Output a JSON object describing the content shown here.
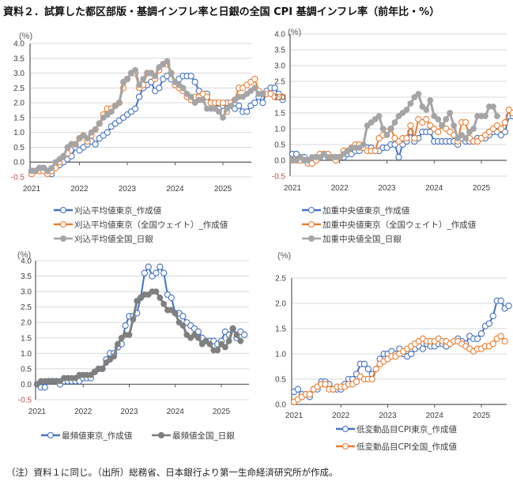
{
  "title": "資料２．試算した都区部版・基調インフレ率と日銀の全国 CPI 基調インフレ率（前年比・%）",
  "note": "（注）資料１に同じ。（出所）総務省、日本銀行より第一生命経済研究所が作成。",
  "colors": {
    "blue": "#4472c4",
    "orange": "#ed7d31",
    "gray": "#a5a5a5",
    "darkgray": "#7f7f7f",
    "grid": "#d9d9d9",
    "axis": "#595959",
    "negative_tick": "#c0504d"
  },
  "chart_data": [
    {
      "id": "trimmed-mean",
      "type": "line",
      "title": "",
      "unit_label": "(%)",
      "xlabel": "",
      "ylabel": "%",
      "ylim": [
        -0.5,
        4.0
      ],
      "yticks": [
        "4.0",
        "3.5",
        "3.0",
        "2.5",
        "2.0",
        "1.5",
        "1.0",
        "0.5",
        "0.0",
        "-0.5"
      ],
      "xticks": [
        "2021",
        "2022",
        "2023",
        "2024",
        "2025"
      ],
      "x_start": "2021-01",
      "x_end": "2025-07",
      "grid": true,
      "legend_position": "bottom",
      "series": [
        {
          "name": "刈込平均値東京_作成値",
          "color": "blue",
          "marker": "open-circle",
          "values": [
            -0.3,
            -0.3,
            -0.2,
            -0.2,
            -0.3,
            -0.4,
            -0.2,
            -0.1,
            0.0,
            0.1,
            0.2,
            0.5,
            0.4,
            0.5,
            0.6,
            0.7,
            0.6,
            0.8,
            0.9,
            1.0,
            1.2,
            1.3,
            1.4,
            1.5,
            1.6,
            1.7,
            1.8,
            2.2,
            2.5,
            2.6,
            2.7,
            2.4,
            2.5,
            2.8,
            2.9,
            2.8,
            2.6,
            2.8,
            2.9,
            2.9,
            2.9,
            2.7,
            2.4,
            2.3,
            2.3,
            2.0,
            2.0,
            1.8,
            1.9,
            2.0,
            1.9,
            1.8,
            1.9,
            1.7,
            1.7,
            1.9,
            2.0,
            2.2,
            2.0,
            2.4,
            2.5,
            2.5,
            2.3,
            2.1
          ]
        },
        {
          "name": "刈込平均値東京（全国ウェイト）_作成値",
          "color": "orange",
          "marker": "open-circle",
          "values": [
            -0.4,
            -0.3,
            -0.3,
            -0.3,
            -0.4,
            -0.3,
            -0.2,
            0.0,
            0.2,
            0.3,
            0.6,
            0.6,
            0.8,
            0.9,
            0.7,
            0.9,
            1.1,
            1.3,
            1.6,
            1.8,
            1.8,
            1.9,
            2.0,
            2.5,
            2.8,
            3.0,
            3.0,
            2.5,
            2.6,
            3.0,
            3.0,
            2.8,
            3.1,
            3.3,
            3.3,
            3.0,
            2.6,
            2.5,
            2.4,
            2.2,
            2.1,
            2.2,
            2.2,
            2.3,
            2.2,
            2.0,
            2.0,
            2.0,
            2.0,
            1.7,
            2.0,
            2.1,
            2.5,
            2.5,
            2.6,
            2.7,
            2.8,
            2.4,
            2.3,
            2.3,
            2.3,
            2.2,
            2.2,
            2.2
          ]
        },
        {
          "name": "刈込平均値全国_日銀",
          "color": "gray",
          "marker": "filled-circle",
          "values": [
            -0.3,
            -0.3,
            -0.2,
            -0.2,
            -0.3,
            -0.2,
            0.0,
            0.1,
            0.2,
            0.5,
            0.6,
            0.6,
            0.8,
            0.9,
            0.8,
            1.0,
            1.1,
            1.3,
            1.5,
            1.6,
            1.7,
            1.9,
            2.0,
            2.7,
            2.8,
            3.0,
            3.1,
            2.6,
            2.8,
            3.0,
            3.0,
            2.9,
            3.2,
            3.3,
            3.4,
            3.0,
            2.7,
            2.6,
            2.5,
            2.3,
            2.2,
            2.0,
            2.1,
            2.1,
            1.8,
            1.8,
            1.8,
            1.7,
            1.5,
            1.8,
            1.9,
            2.1,
            2.2,
            2.2,
            2.3,
            2.4,
            2.5,
            2.3,
            2.3
          ]
        }
      ]
    },
    {
      "id": "weighted-median",
      "type": "line",
      "title": "",
      "unit_label": "(%)",
      "xlabel": "",
      "ylabel": "%",
      "ylim": [
        -0.5,
        4.0
      ],
      "yticks": [
        "4.0",
        "3.5",
        "3.0",
        "2.5",
        "2.0",
        "1.5",
        "1.0",
        "0.5",
        "0.0",
        "-0.5"
      ],
      "xticks": [
        "2021",
        "2022",
        "2023",
        "2024",
        "2025"
      ],
      "x_start": "2021-01",
      "x_end": "2025-07",
      "grid": true,
      "legend_position": "bottom",
      "series": [
        {
          "name": "加重中央値東京_作成値",
          "color": "blue",
          "marker": "open-circle",
          "values": [
            0.2,
            0.2,
            0.1,
            0.1,
            0.0,
            0.0,
            0.1,
            0.1,
            0.2,
            0.2,
            0.1,
            0.1,
            0.1,
            0.1,
            0.2,
            0.2,
            0.3,
            0.3,
            0.4,
            0.4,
            0.4,
            0.3,
            0.3,
            0.4,
            0.4,
            0.5,
            0.5,
            0.1,
            0.5,
            0.6,
            0.9,
            0.6,
            0.7,
            0.9,
            0.9,
            0.9,
            0.6,
            0.6,
            0.6,
            0.6,
            0.6,
            0.6,
            0.5,
            0.7,
            0.6,
            0.6,
            0.6,
            0.7,
            0.7,
            0.7,
            0.8,
            0.9,
            0.9,
            0.8,
            0.9,
            1.4,
            1.4,
            1.3
          ]
        },
        {
          "name": "加重中央値東京（全国ウェイト）_作成値",
          "color": "orange",
          "marker": "open-circle",
          "values": [
            0.0,
            0.0,
            0.0,
            0.0,
            -0.1,
            -0.1,
            0.0,
            0.2,
            0.2,
            0.2,
            0.1,
            0.0,
            0.1,
            0.3,
            0.3,
            0.4,
            0.5,
            0.5,
            0.4,
            0.3,
            0.3,
            0.3,
            0.7,
            0.8,
            0.9,
            1.0,
            0.7,
            0.6,
            0.7,
            0.7,
            1.1,
            0.7,
            1.3,
            1.2,
            1.3,
            1.1,
            1.0,
            0.9,
            1.1,
            1.0,
            0.9,
            0.8,
            0.6,
            1.2,
            1.2,
            0.7,
            0.6,
            0.6,
            0.7,
            0.8,
            0.9,
            1.0,
            1.1,
            1.0,
            1.2,
            1.6,
            1.5,
            1.2,
            1.1
          ]
        },
        {
          "name": "加重中央値全国_日銀",
          "color": "gray",
          "marker": "filled-circle",
          "values": [
            0.0,
            0.0,
            0.1,
            0.0,
            0.0,
            0.1,
            0.1,
            0.1,
            0.2,
            0.1,
            0.1,
            0.1,
            0.1,
            0.2,
            0.3,
            0.4,
            0.4,
            0.4,
            0.5,
            1.1,
            1.2,
            1.3,
            1.4,
            1.0,
            0.8,
            1.0,
            1.2,
            1.4,
            1.5,
            1.6,
            1.8,
            2.0,
            2.1,
            1.7,
            1.6,
            1.9,
            1.4,
            1.3,
            1.1,
            1.3,
            1.5,
            1.1,
            0.7,
            0.8,
            0.7,
            0.9,
            1.0,
            1.4,
            1.4,
            1.4,
            1.7,
            1.7,
            1.4
          ]
        }
      ]
    },
    {
      "id": "mode",
      "type": "line",
      "title": "",
      "unit_label": "(%)",
      "xlabel": "",
      "ylabel": "%",
      "ylim": [
        -0.5,
        4.0
      ],
      "yticks": [
        "4.0",
        "3.5",
        "3.0",
        "2.5",
        "2.0",
        "1.5",
        "1.0",
        "0.5",
        "0.0",
        "-0.5"
      ],
      "xticks": [
        "2021",
        "2022",
        "2023",
        "2024",
        "2025"
      ],
      "x_start": "2021-01",
      "x_end": "2025-07",
      "grid": true,
      "legend_position": "bottom",
      "series": [
        {
          "name": "最頻値東京_作成値",
          "color": "blue",
          "marker": "open-circle",
          "values": [
            0.0,
            -0.1,
            -0.1,
            0.1,
            0.1,
            0.1,
            0.0,
            0.1,
            0.1,
            0.1,
            0.1,
            0.1,
            0.2,
            0.2,
            0.2,
            0.4,
            0.5,
            0.5,
            0.8,
            1.0,
            1.0,
            1.2,
            1.3,
            1.9,
            2.2,
            2.2,
            2.3,
            2.8,
            3.6,
            3.8,
            3.5,
            3.6,
            3.8,
            3.6,
            2.9,
            2.8,
            2.3,
            2.3,
            2.2,
            2.0,
            1.9,
            1.8,
            1.7,
            1.5,
            1.4,
            1.4,
            1.4,
            1.3,
            1.4,
            1.7,
            1.6,
            1.8,
            1.5,
            1.7,
            1.6
          ]
        },
        {
          "name": "最頻値全国_日銀",
          "color": "darkgray",
          "marker": "filled-circle",
          "values": [
            0.0,
            0.1,
            0.1,
            0.1,
            0.1,
            0.1,
            0.1,
            0.2,
            0.2,
            0.2,
            0.2,
            0.3,
            0.3,
            0.3,
            0.3,
            0.4,
            0.5,
            0.5,
            0.7,
            0.8,
            0.9,
            1.3,
            1.5,
            1.6,
            1.6,
            2.1,
            2.7,
            2.8,
            2.9,
            2.9,
            3.0,
            3.0,
            2.8,
            2.6,
            2.4,
            2.4,
            2.3,
            2.0,
            1.9,
            1.6,
            1.5,
            1.6,
            1.5,
            1.3,
            1.4,
            1.3,
            1.1,
            1.1,
            1.3,
            1.2,
            1.4,
            1.8,
            1.6,
            1.4
          ]
        }
      ]
    },
    {
      "id": "low-volatility",
      "type": "line",
      "title": "",
      "unit_label": "(%)",
      "xlabel": "",
      "ylabel": "%",
      "ylim": [
        0.0,
        2.5
      ],
      "yticks": [
        "2.5",
        "2.0",
        "1.5",
        "1.0",
        "0.5",
        "0.0"
      ],
      "xticks": [
        "2021",
        "2022",
        "2023",
        "2024",
        "2025"
      ],
      "x_start": "2021-01",
      "x_end": "2025-07",
      "grid": true,
      "legend_position": "bottom",
      "series": [
        {
          "name": "低変動品目CPI東京_作成値",
          "color": "blue",
          "marker": "open-circle",
          "values": [
            0.25,
            0.3,
            0.2,
            0.2,
            0.15,
            0.3,
            0.3,
            0.45,
            0.45,
            0.4,
            0.3,
            0.3,
            0.3,
            0.4,
            0.5,
            0.5,
            0.6,
            0.8,
            0.8,
            0.7,
            0.6,
            0.7,
            0.9,
            1.0,
            1.0,
            1.05,
            1.0,
            1.1,
            1.0,
            0.95,
            1.0,
            1.1,
            1.15,
            1.1,
            1.2,
            1.15,
            1.15,
            1.2,
            1.2,
            1.15,
            1.2,
            1.25,
            1.3,
            1.25,
            1.2,
            1.35,
            1.3,
            1.3,
            1.4,
            1.55,
            1.6,
            1.75,
            2.05,
            2.05,
            1.9,
            1.95
          ]
        },
        {
          "name": "低変動品目CPI全国_作成値",
          "color": "orange",
          "marker": "open-circle",
          "values": [
            0.05,
            0.1,
            0.15,
            0.2,
            0.2,
            0.3,
            0.35,
            0.4,
            0.4,
            0.3,
            0.3,
            0.35,
            0.35,
            0.35,
            0.4,
            0.4,
            0.45,
            0.55,
            0.5,
            0.5,
            0.5,
            0.7,
            0.8,
            0.85,
            0.9,
            0.95,
            0.95,
            1.0,
            1.05,
            1.1,
            1.15,
            1.2,
            1.25,
            1.3,
            1.25,
            1.25,
            1.25,
            1.3,
            1.25,
            1.25,
            1.2,
            1.25,
            1.25,
            1.2,
            1.15,
            1.1,
            1.05,
            1.1,
            1.1,
            1.15,
            1.15,
            1.2,
            1.3,
            1.35,
            1.25
          ]
        }
      ]
    }
  ]
}
